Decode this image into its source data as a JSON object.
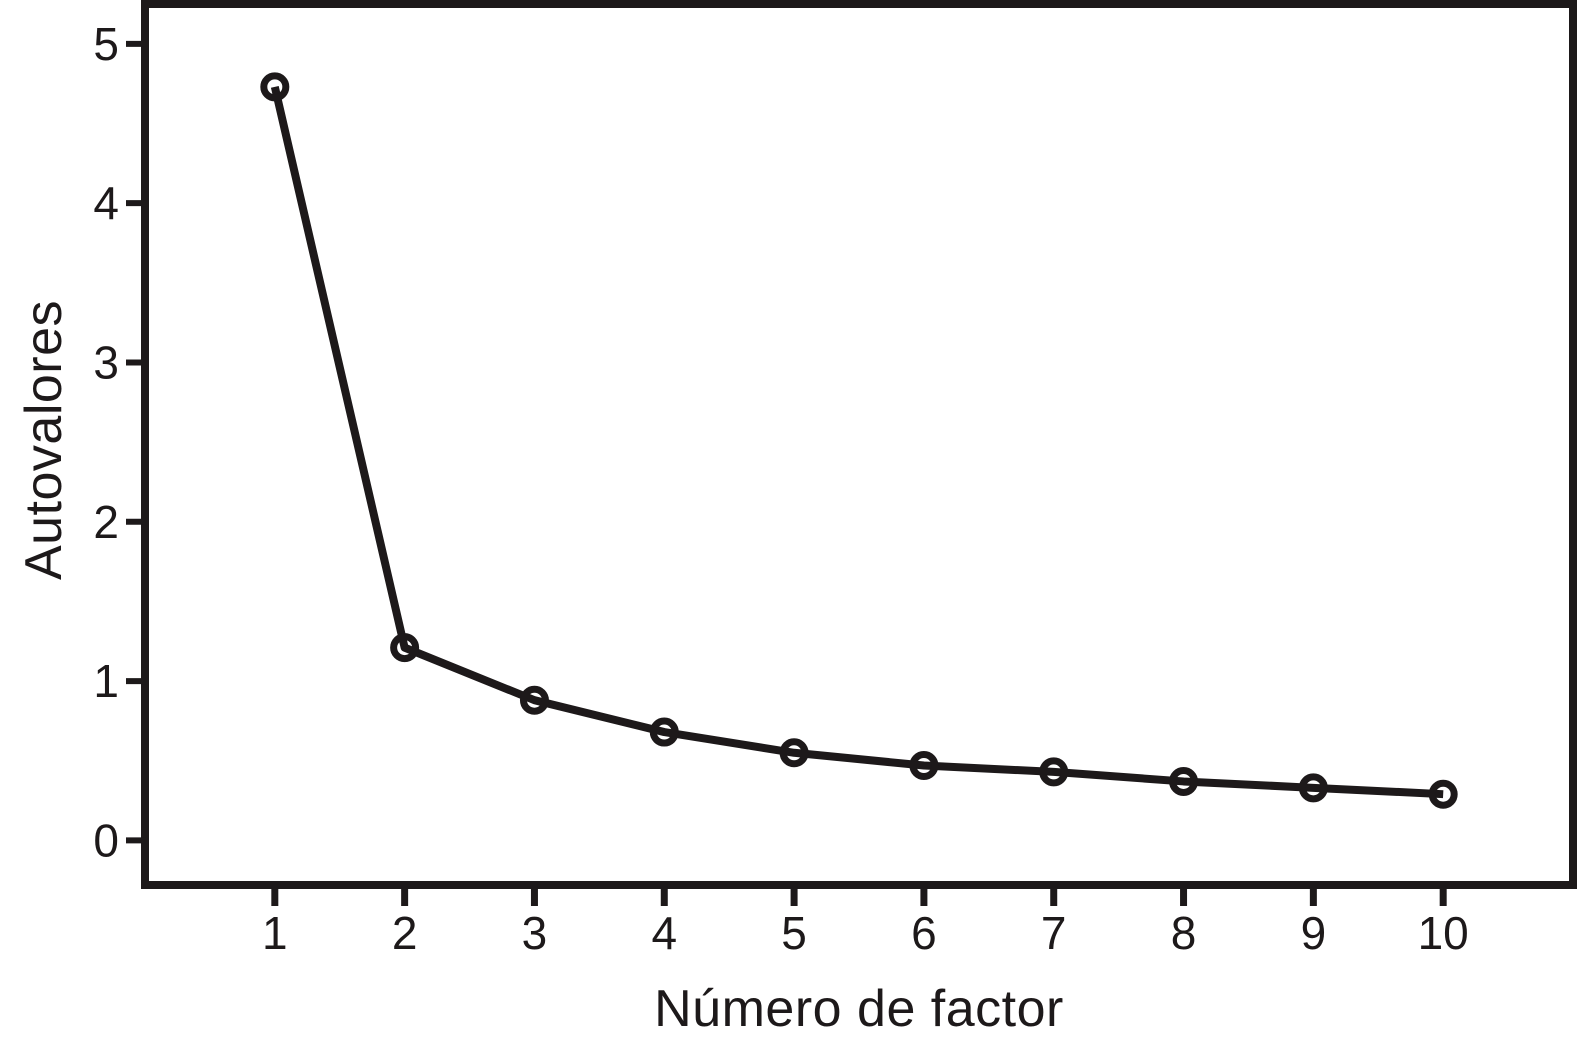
{
  "figure": {
    "background": "#ffffff",
    "ink_color": "#1d191a"
  },
  "chart_data": {
    "type": "line",
    "title": "",
    "xlabel": "Número de factor",
    "ylabel": "Autovalores",
    "x": [
      1,
      2,
      3,
      4,
      5,
      6,
      7,
      8,
      9,
      10
    ],
    "series": [
      {
        "name": "Autovalores",
        "values": [
          4.73,
          1.21,
          0.88,
          0.68,
          0.55,
          0.47,
          0.43,
          0.37,
          0.33,
          0.29
        ]
      }
    ],
    "x_ticks": [
      1,
      2,
      3,
      4,
      5,
      6,
      7,
      8,
      9,
      10
    ],
    "y_ticks": [
      0,
      1,
      2,
      3,
      4,
      5
    ],
    "xlim": [
      0,
      11
    ],
    "ylim": [
      -0.28,
      5.25
    ],
    "grid": false,
    "legend": "none",
    "marker": "open-circle",
    "line_color": "#1d191a",
    "frame": "full-box"
  }
}
